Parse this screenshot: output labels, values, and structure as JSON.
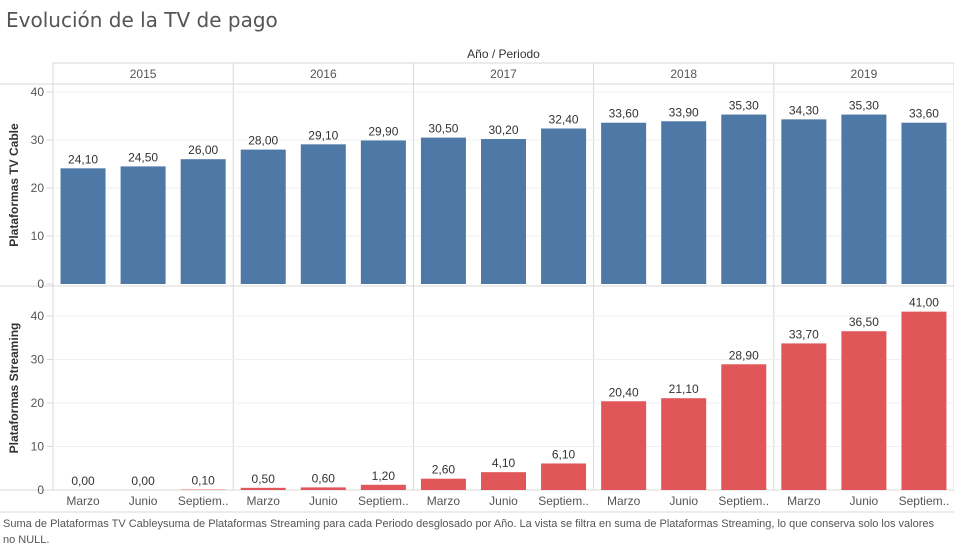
{
  "title": "Evolución de la TV de pago",
  "caption": "Suma de Plataformas TV Cableysuma de Plataformas Streaming para cada Periodo desglosado por Año. La vista se filtra en suma de Plataformas Streaming, lo que conserva solo los valores no NULL.",
  "colors": {
    "cable": "#4e79a7",
    "streaming": "#e15759"
  },
  "chart_data": {
    "type": "bar",
    "header": "Año / Periodo",
    "years": [
      "2015",
      "2016",
      "2017",
      "2018",
      "2019"
    ],
    "periods": [
      "Marzo",
      "Junio",
      "Septiem.."
    ],
    "series": [
      {
        "name": "Plataformas TV Cable",
        "ylabel": "Plataformas TV Cable",
        "ylim": [
          0,
          40
        ],
        "yticks": [
          0,
          10,
          20,
          30,
          40
        ],
        "values": [
          24.1,
          24.5,
          26.0,
          28.0,
          29.1,
          29.9,
          30.5,
          30.2,
          32.4,
          33.6,
          33.9,
          35.3,
          34.3,
          35.3,
          33.6
        ],
        "labels": [
          "24,10",
          "24,50",
          "26,00",
          "28,00",
          "29,10",
          "29,90",
          "30,50",
          "30,20",
          "32,40",
          "33,60",
          "33,90",
          "35,30",
          "34,30",
          "35,30",
          "33,60"
        ]
      },
      {
        "name": "Plataformas Streaming",
        "ylabel": "Plataformas Streaming",
        "ylim": [
          0,
          44
        ],
        "yticks": [
          0,
          10,
          20,
          30,
          40
        ],
        "values": [
          0.0,
          0.0,
          0.1,
          0.5,
          0.6,
          1.2,
          2.6,
          4.1,
          6.1,
          20.4,
          21.1,
          28.9,
          33.7,
          36.5,
          41.0
        ],
        "labels": [
          "0,00",
          "0,00",
          "0,10",
          "0,50",
          "0,60",
          "1,20",
          "2,60",
          "4,10",
          "6,10",
          "20,40",
          "21,10",
          "28,90",
          "33,70",
          "36,50",
          "41,00"
        ]
      }
    ],
    "grid": true
  }
}
